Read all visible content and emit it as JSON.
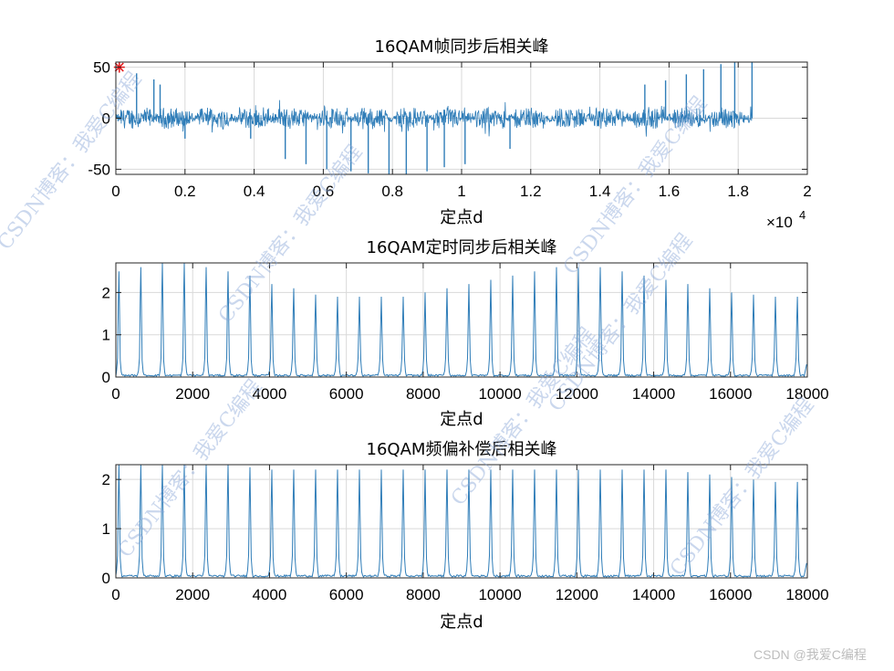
{
  "colors": {
    "line": "#2f7db8",
    "marker": "#e41a1c",
    "grid": "#d9d9d9",
    "axis": "#262626"
  },
  "watermarks": [
    "CSDN博客：我爱C编程",
    "CSDN博客：我爱C编程",
    "CSDN博客：我爱C编程",
    "CSDN博客：我爱C编程",
    "CSDN博客：我爱C编程",
    "CSDN博客：我爱C编程",
    "CSDN博客：我爱C编程"
  ],
  "credit": "CSDN @我爱C编程",
  "chart_data": [
    {
      "type": "line",
      "title": "16QAM帧同步后相关峰",
      "xlabel": "定点d",
      "x_exponent_label": "×10",
      "x_exponent": "4",
      "xlim": [
        0,
        20000
      ],
      "ylim": [
        -55,
        55
      ],
      "xticks": [
        0,
        2000,
        4000,
        6000,
        8000,
        10000,
        12000,
        14000,
        16000,
        18000,
        20000
      ],
      "xtick_labels": [
        "0",
        "0.2",
        "0.4",
        "0.6",
        "0.8",
        "1",
        "1.2",
        "1.4",
        "1.6",
        "1.8",
        "2"
      ],
      "yticks": [
        -50,
        0,
        50
      ],
      "ytick_labels": [
        "-50",
        "0",
        "50"
      ],
      "grid": true,
      "signal_end": 18400,
      "noise_band": 9,
      "frame_period": 1140,
      "spikes": [
        {
          "x": 600,
          "y": 44
        },
        {
          "x": 1100,
          "y": 38
        },
        {
          "x": 1280,
          "y": 33
        },
        {
          "x": 2000,
          "y": -20
        },
        {
          "x": 3900,
          "y": -20
        },
        {
          "x": 4900,
          "y": -40
        },
        {
          "x": 5500,
          "y": -45
        },
        {
          "x": 6100,
          "y": -50
        },
        {
          "x": 6800,
          "y": -52
        },
        {
          "x": 7300,
          "y": -54
        },
        {
          "x": 7900,
          "y": -55
        },
        {
          "x": 8400,
          "y": -55
        },
        {
          "x": 9000,
          "y": -52
        },
        {
          "x": 9500,
          "y": -48
        },
        {
          "x": 10100,
          "y": -45
        },
        {
          "x": 11400,
          "y": -30
        },
        {
          "x": 15300,
          "y": 33
        },
        {
          "x": 15900,
          "y": 37
        },
        {
          "x": 16500,
          "y": 43
        },
        {
          "x": 17000,
          "y": 48
        },
        {
          "x": 17500,
          "y": 53
        },
        {
          "x": 17900,
          "y": 55
        },
        {
          "x": 18400,
          "y": 55
        }
      ],
      "marker": {
        "x": 100,
        "y": 50,
        "symbol": "*"
      }
    },
    {
      "type": "line",
      "title": "16QAM定时同步后相关峰",
      "xlabel": "定点d",
      "xlim": [
        0,
        18000
      ],
      "ylim": [
        0,
        2.7
      ],
      "xticks": [
        0,
        2000,
        4000,
        6000,
        8000,
        10000,
        12000,
        14000,
        16000,
        18000
      ],
      "xtick_labels": [
        "0",
        "2000",
        "4000",
        "6000",
        "8000",
        "10000",
        "12000",
        "14000",
        "16000",
        "18000"
      ],
      "yticks": [
        0,
        1,
        2
      ],
      "ytick_labels": [
        "0",
        "1",
        "2"
      ],
      "grid": true,
      "peaks": [
        {
          "x": 80,
          "y": 2.5
        },
        {
          "x": 650,
          "y": 2.6
        },
        {
          "x": 1210,
          "y": 2.7
        },
        {
          "x": 1780,
          "y": 2.7
        },
        {
          "x": 2350,
          "y": 2.6
        },
        {
          "x": 2920,
          "y": 2.5
        },
        {
          "x": 3490,
          "y": 2.4
        },
        {
          "x": 4060,
          "y": 2.2
        },
        {
          "x": 4630,
          "y": 2.1
        },
        {
          "x": 5200,
          "y": 1.95
        },
        {
          "x": 5770,
          "y": 1.9
        },
        {
          "x": 6340,
          "y": 1.9
        },
        {
          "x": 6910,
          "y": 1.9
        },
        {
          "x": 7480,
          "y": 1.9
        },
        {
          "x": 8050,
          "y": 2.0
        },
        {
          "x": 8620,
          "y": 2.1
        },
        {
          "x": 9190,
          "y": 2.2
        },
        {
          "x": 9760,
          "y": 2.3
        },
        {
          "x": 10330,
          "y": 2.4
        },
        {
          "x": 10900,
          "y": 2.5
        },
        {
          "x": 11470,
          "y": 2.6
        },
        {
          "x": 12040,
          "y": 2.6
        },
        {
          "x": 12610,
          "y": 2.6
        },
        {
          "x": 13180,
          "y": 2.5
        },
        {
          "x": 13750,
          "y": 2.4
        },
        {
          "x": 14320,
          "y": 2.3
        },
        {
          "x": 14890,
          "y": 2.2
        },
        {
          "x": 15460,
          "y": 2.1
        },
        {
          "x": 16030,
          "y": 2.0
        },
        {
          "x": 16600,
          "y": 1.95
        },
        {
          "x": 17170,
          "y": 1.9
        },
        {
          "x": 17740,
          "y": 1.9
        }
      ],
      "tail": {
        "x": 17980,
        "y": 0.3
      }
    },
    {
      "type": "line",
      "title": "16QAM频偏补偿后相关峰",
      "xlabel": "定点d",
      "xlim": [
        0,
        18000
      ],
      "ylim": [
        0,
        2.3
      ],
      "xticks": [
        0,
        2000,
        4000,
        6000,
        8000,
        10000,
        12000,
        14000,
        16000,
        18000
      ],
      "xtick_labels": [
        "0",
        "2000",
        "4000",
        "6000",
        "8000",
        "10000",
        "12000",
        "14000",
        "16000",
        "18000"
      ],
      "yticks": [
        0,
        1,
        2
      ],
      "ytick_labels": [
        "0",
        "1",
        "2"
      ],
      "grid": true,
      "peaks": [
        {
          "x": 80,
          "y": 2.3
        },
        {
          "x": 650,
          "y": 2.3
        },
        {
          "x": 1210,
          "y": 2.3
        },
        {
          "x": 1780,
          "y": 2.3
        },
        {
          "x": 2350,
          "y": 2.3
        },
        {
          "x": 2920,
          "y": 2.3
        },
        {
          "x": 3490,
          "y": 2.25
        },
        {
          "x": 4060,
          "y": 2.2
        },
        {
          "x": 4630,
          "y": 2.2
        },
        {
          "x": 5200,
          "y": 2.2
        },
        {
          "x": 5770,
          "y": 2.2
        },
        {
          "x": 6340,
          "y": 2.2
        },
        {
          "x": 6910,
          "y": 2.2
        },
        {
          "x": 7480,
          "y": 2.2
        },
        {
          "x": 8050,
          "y": 2.2
        },
        {
          "x": 8620,
          "y": 2.2
        },
        {
          "x": 9190,
          "y": 2.2
        },
        {
          "x": 9760,
          "y": 2.2
        },
        {
          "x": 10330,
          "y": 2.2
        },
        {
          "x": 10900,
          "y": 2.2
        },
        {
          "x": 11470,
          "y": 2.2
        },
        {
          "x": 12040,
          "y": 2.2
        },
        {
          "x": 12610,
          "y": 2.2
        },
        {
          "x": 13180,
          "y": 2.2
        },
        {
          "x": 13750,
          "y": 2.2
        },
        {
          "x": 14320,
          "y": 2.2
        },
        {
          "x": 14890,
          "y": 2.15
        },
        {
          "x": 15460,
          "y": 2.1
        },
        {
          "x": 16030,
          "y": 2.05
        },
        {
          "x": 16600,
          "y": 2.0
        },
        {
          "x": 17170,
          "y": 1.95
        },
        {
          "x": 17740,
          "y": 1.95
        }
      ],
      "tail": {
        "x": 17980,
        "y": 0.3
      }
    }
  ]
}
